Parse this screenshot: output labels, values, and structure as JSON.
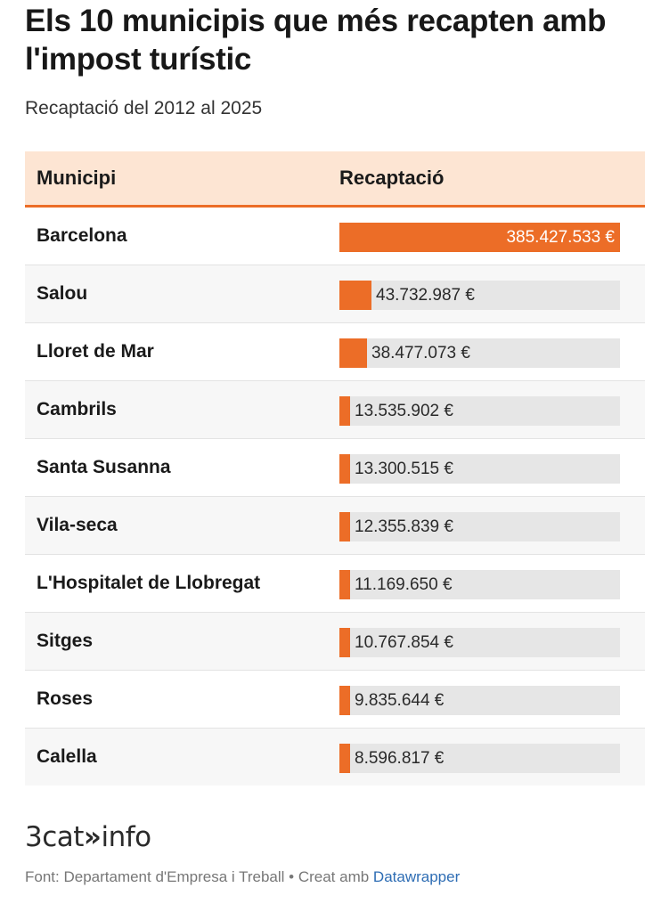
{
  "header": {
    "title": "Els 10 municipis que més recapten amb l'impost turístic",
    "subtitle": "Recaptació del 2012 al 2025"
  },
  "table": {
    "columns": [
      "Municipi",
      "Recaptació"
    ]
  },
  "colors": {
    "bar": "#ec6d27",
    "track": "#e6e6e6",
    "header_bg": "#fde5d3",
    "link": "#2e6db4"
  },
  "chart_data": {
    "type": "table",
    "title": "Els 10 municipis que més recapten amb l'impost turístic",
    "subtitle": "Recaptació del 2012 al 2025",
    "columns": [
      "Municipi",
      "Recaptació"
    ],
    "max_value": 385427533,
    "rows": [
      {
        "name": "Barcelona",
        "value": 385427533,
        "label": "385.427.533 €"
      },
      {
        "name": "Salou",
        "value": 43732987,
        "label": "43.732.987 €"
      },
      {
        "name": "Lloret de Mar",
        "value": 38477073,
        "label": "38.477.073 €"
      },
      {
        "name": "Cambrils",
        "value": 13535902,
        "label": "13.535.902 €"
      },
      {
        "name": "Santa Susanna",
        "value": 13300515,
        "label": "13.300.515 €"
      },
      {
        "name": "Vila-seca",
        "value": 12355839,
        "label": "12.355.839 €"
      },
      {
        "name": "L'Hospitalet de Llobregat",
        "value": 11169650,
        "label": "11.169.650 €"
      },
      {
        "name": "Sitges",
        "value": 10767854,
        "label": "10.767.854 €"
      },
      {
        "name": "Roses",
        "value": 9835644,
        "label": "9.835.644 €"
      },
      {
        "name": "Calella",
        "value": 8596817,
        "label": "8.596.817 €"
      }
    ]
  },
  "logo": {
    "part1": "3cat",
    "arrow": "»",
    "part2": "info"
  },
  "footer": {
    "source": "Font: Departament d'Empresa i Treball • Creat amb ",
    "link": "Datawrapper"
  }
}
